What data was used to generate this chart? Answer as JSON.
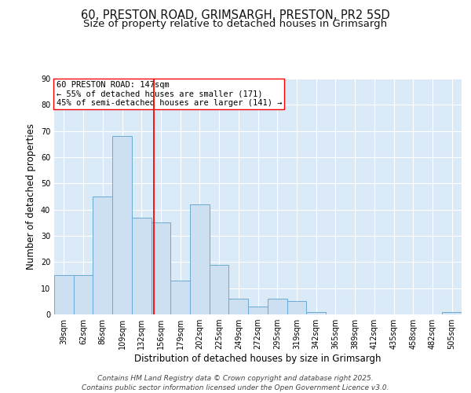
{
  "title_line1": "60, PRESTON ROAD, GRIMSARGH, PRESTON, PR2 5SD",
  "title_line2": "Size of property relative to detached houses in Grimsargh",
  "xlabel": "Distribution of detached houses by size in Grimsargh",
  "ylabel": "Number of detached properties",
  "bar_color": "#cde0f2",
  "bar_edge_color": "#6aaad4",
  "background_color": "#daeaf7",
  "grid_color": "#ffffff",
  "categories": [
    "39sqm",
    "62sqm",
    "86sqm",
    "109sqm",
    "132sqm",
    "156sqm",
    "179sqm",
    "202sqm",
    "225sqm",
    "249sqm",
    "272sqm",
    "295sqm",
    "319sqm",
    "342sqm",
    "365sqm",
    "389sqm",
    "412sqm",
    "435sqm",
    "458sqm",
    "482sqm",
    "505sqm"
  ],
  "values": [
    15,
    15,
    45,
    68,
    37,
    35,
    13,
    42,
    19,
    6,
    3,
    6,
    5,
    1,
    0,
    0,
    0,
    0,
    0,
    0,
    1
  ],
  "property_line_label": "60 PRESTON ROAD: 147sqm",
  "annotation_line2": "← 55% of detached houses are smaller (171)",
  "annotation_line3": "45% of semi-detached houses are larger (141) →",
  "ylim": [
    0,
    90
  ],
  "yticks": [
    0,
    10,
    20,
    30,
    40,
    50,
    60,
    70,
    80,
    90
  ],
  "footer_line1": "Contains HM Land Registry data © Crown copyright and database right 2025.",
  "footer_line2": "Contains public sector information licensed under the Open Government Licence v3.0.",
  "title_fontsize": 10.5,
  "subtitle_fontsize": 9.5,
  "axis_label_fontsize": 8.5,
  "tick_fontsize": 7,
  "annotation_fontsize": 7.5,
  "footer_fontsize": 6.5
}
